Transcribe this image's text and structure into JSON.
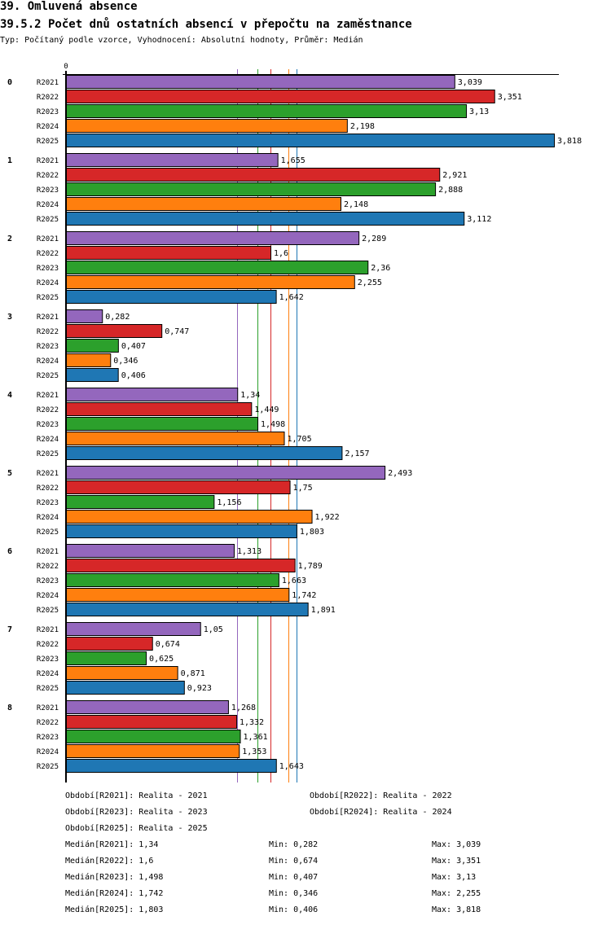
{
  "header": {
    "title": "39. Omluvená absence",
    "subtitle": "39.5.2 Počet dnů ostatních absencí v přepočtu na zaměstnance",
    "meta": "Typ: Počítaný podle vzorce, Vyhodnocení: Absolutní hodnoty, Průměr: Medián"
  },
  "chart_data": {
    "type": "bar",
    "orientation": "horizontal",
    "title": "39.5.2 Počet dnů ostatních absencí v přepočtu na zaměstnance",
    "xlabel": "",
    "ylabel": "",
    "x_tick_labels": [
      "0"
    ],
    "xlim": [
      0,
      3.818
    ],
    "categories": [
      "0",
      "1",
      "2",
      "3",
      "4",
      "5",
      "6",
      "7",
      "8"
    ],
    "series": [
      {
        "name": "R2021",
        "color": "#9467bd",
        "values": [
          3.039,
          1.655,
          2.289,
          0.282,
          1.34,
          2.493,
          1.313,
          1.05,
          1.268
        ],
        "labels": [
          "3,039",
          "1,655",
          "2,289",
          "0,282",
          "1,34",
          "2,493",
          "1,313",
          "1,05",
          "1,268"
        ]
      },
      {
        "name": "R2022",
        "color": "#d62728",
        "values": [
          3.351,
          2.921,
          1.6,
          0.747,
          1.449,
          1.75,
          1.789,
          0.674,
          1.332
        ],
        "labels": [
          "3,351",
          "2,921",
          "1,6",
          "0,747",
          "1,449",
          "1,75",
          "1,789",
          "0,674",
          "1,332"
        ]
      },
      {
        "name": "R2023",
        "color": "#2ca02c",
        "values": [
          3.13,
          2.888,
          2.36,
          0.407,
          1.498,
          1.156,
          1.663,
          0.625,
          1.361
        ],
        "labels": [
          "3,13",
          "2,888",
          "2,36",
          "0,407",
          "1,498",
          "1,156",
          "1,663",
          "0,625",
          "1,361"
        ]
      },
      {
        "name": "R2024",
        "color": "#ff7f0e",
        "values": [
          2.198,
          2.148,
          2.255,
          0.346,
          1.705,
          1.922,
          1.742,
          0.871,
          1.353
        ],
        "labels": [
          "2,198",
          "2,148",
          "2,255",
          "0,346",
          "1,705",
          "1,922",
          "1,742",
          "0,871",
          "1,353"
        ]
      },
      {
        "name": "R2025",
        "color": "#1f77b4",
        "values": [
          3.818,
          3.112,
          1.642,
          0.406,
          2.157,
          1.803,
          1.891,
          0.923,
          1.643
        ],
        "labels": [
          "3,818",
          "3,112",
          "1,642",
          "0,406",
          "2,157",
          "1,803",
          "1,891",
          "0,923",
          "1,643"
        ]
      }
    ],
    "medians": [
      {
        "series": "R2021",
        "value": 1.34
      },
      {
        "series": "R2022",
        "value": 1.6
      },
      {
        "series": "R2023",
        "value": 1.498
      },
      {
        "series": "R2024",
        "value": 1.742
      },
      {
        "series": "R2025",
        "value": 1.803
      }
    ],
    "grid": false,
    "legend_position": "bottom"
  },
  "legend": {
    "periods": [
      "Období[R2021]: Realita - 2021",
      "Období[R2022]: Realita - 2022",
      "Období[R2023]: Realita - 2023",
      "Období[R2024]: Realita - 2024",
      "Období[R2025]: Realita - 2025"
    ],
    "stats": [
      {
        "median": "Medián[R2021]: 1,34",
        "min": "Min: 0,282",
        "max": "Max: 3,039"
      },
      {
        "median": "Medián[R2022]: 1,6",
        "min": "Min: 0,674",
        "max": "Max: 3,351"
      },
      {
        "median": "Medián[R2023]: 1,498",
        "min": "Min: 0,407",
        "max": "Max: 3,13"
      },
      {
        "median": "Medián[R2024]: 1,742",
        "min": "Min: 0,346",
        "max": "Max: 2,255"
      },
      {
        "median": "Medián[R2025]: 1,803",
        "min": "Min: 0,406",
        "max": "Max: 3,818"
      }
    ]
  }
}
